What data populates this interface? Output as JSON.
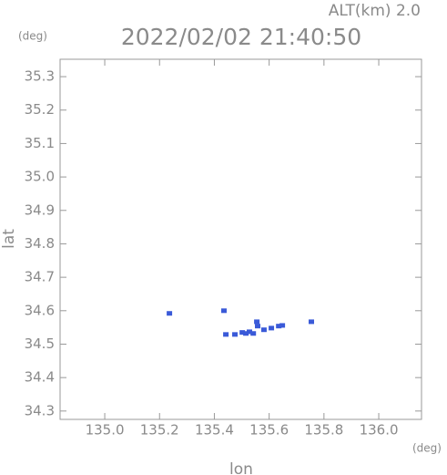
{
  "chart_data": {
    "type": "scatter",
    "title": "2022/02/02 21:40:50",
    "subtitle": "ALT(km) 2.0",
    "y_unit": "(deg)",
    "x_unit": "(deg)",
    "x_label": "lon",
    "y_label": "lat",
    "xlim": [
      134.837,
      136.156
    ],
    "ylim": [
      34.275,
      35.352
    ],
    "xticks": [
      {
        "value": 135,
        "label": "135.0"
      },
      135.2,
      135.4,
      135.6,
      135.8,
      {
        "value": 136,
        "label": "136.0"
      }
    ],
    "yticks": [
      34.3,
      34.4,
      34.5,
      34.6,
      34.7,
      34.8,
      34.9,
      {
        "value": 35,
        "label": "35.0"
      },
      35.1,
      35.2,
      35.3
    ],
    "series": [
      {
        "color": "#3a5ad8",
        "x": [
          135.236,
          135.435,
          135.442,
          135.475,
          135.502,
          135.515,
          135.528,
          135.542,
          135.555,
          135.558,
          135.581,
          135.608,
          135.635,
          135.648,
          135.754
        ],
        "y": [
          34.592,
          34.6,
          34.529,
          34.529,
          34.535,
          34.532,
          34.537,
          34.532,
          34.567,
          34.554,
          34.543,
          34.548,
          34.554,
          34.556,
          34.567
        ]
      }
    ]
  }
}
